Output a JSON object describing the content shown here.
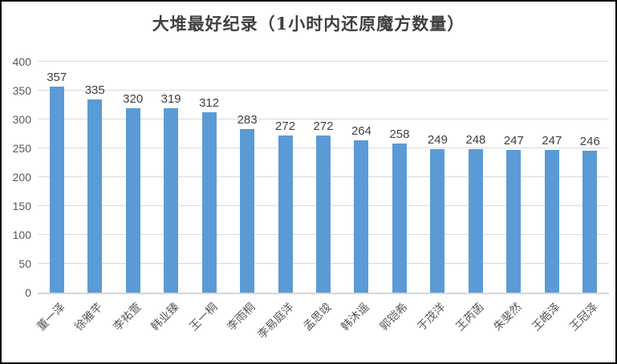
{
  "window": {
    "background": "#ffffff",
    "border_color": "#000000"
  },
  "chart_data": {
    "type": "bar",
    "title": "大堆最好纪录（1小时内还原魔方数量）",
    "categories": [
      "董一泽",
      "徐雅芊",
      "李祐萱",
      "韩业臻",
      "王一桐",
      "李雨桐",
      "李易庭洋",
      "孟思竣",
      "韩沐遥",
      "郭铠希",
      "于茂洋",
      "王芮菡",
      "朱斐然",
      "王皓泽",
      "王冠泽"
    ],
    "values": [
      357,
      335,
      320,
      319,
      312,
      283,
      272,
      272,
      264,
      258,
      249,
      248,
      247,
      247,
      246
    ],
    "xlabel": "",
    "ylabel": "",
    "ylim": [
      0,
      400
    ],
    "yticks": [
      0,
      50,
      100,
      150,
      200,
      250,
      300,
      350,
      400
    ],
    "grid": "horizontal",
    "legend": "none",
    "data_labels": true,
    "bar_color": "#5b9bd5",
    "gridline_color": "#d9d9d9",
    "axis_label_color": "#595959",
    "data_label_color": "#404040",
    "title_color": "#3f3f3f"
  }
}
